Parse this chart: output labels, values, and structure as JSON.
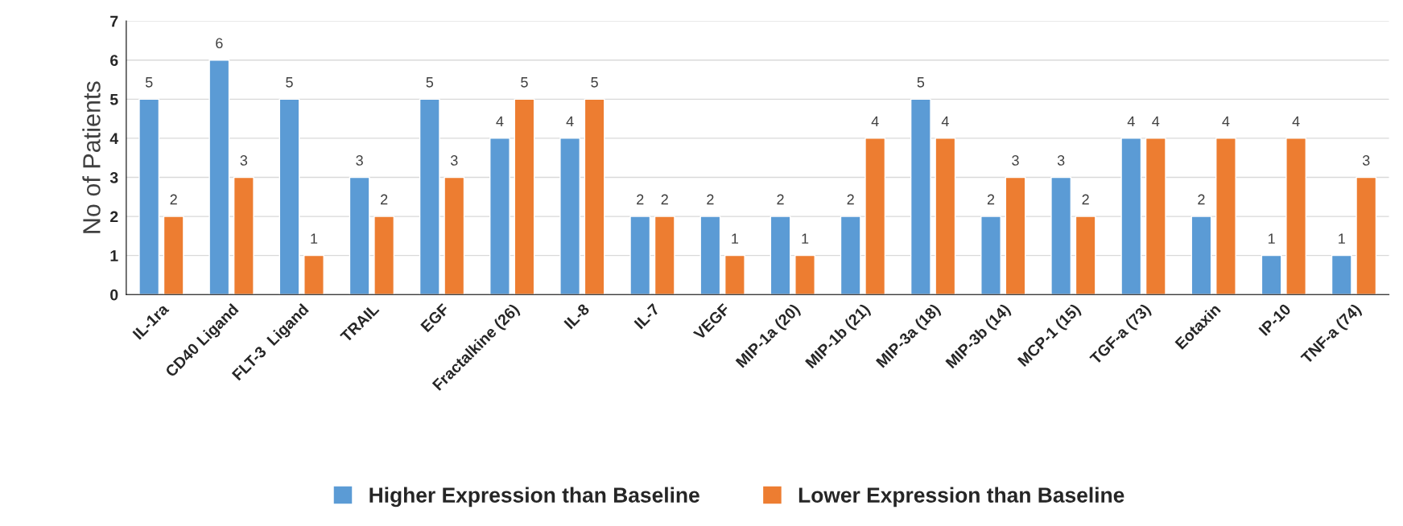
{
  "chart_data": {
    "type": "bar",
    "categories": [
      "IL-1ra",
      "CD40 Ligand",
      "FLT-3  Ligand",
      "TRAIL",
      "EGF",
      "Fractalkine (26)",
      "IL-8",
      "IL-7",
      "VEGF",
      "MIP-1a (20)",
      "MIP-1b (21)",
      "MIP-3a (18)",
      "MIP-3b (14)",
      "MCP-1 (15)",
      "TGF-a (73)",
      "Eotaxin",
      "IP-10",
      "TNF-a (74)"
    ],
    "series": [
      {
        "name": "Higher Expression than Baseline",
        "color": "#5b9bd5",
        "values": [
          5,
          6,
          5,
          3,
          5,
          4,
          4,
          2,
          2,
          2,
          2,
          5,
          2,
          3,
          4,
          2,
          1,
          1
        ]
      },
      {
        "name": "Lower Expression than Baseline",
        "color": "#ed7d31",
        "values": [
          2,
          3,
          1,
          2,
          3,
          5,
          5,
          2,
          1,
          1,
          4,
          4,
          3,
          2,
          4,
          4,
          4,
          3
        ]
      }
    ],
    "ylabel": "No of Patients",
    "ylim": [
      0,
      7
    ],
    "yticks": [
      0,
      1,
      2,
      3,
      4,
      5,
      6,
      7
    ],
    "grid": "y",
    "legend": "bottom",
    "data_labels": true
  }
}
